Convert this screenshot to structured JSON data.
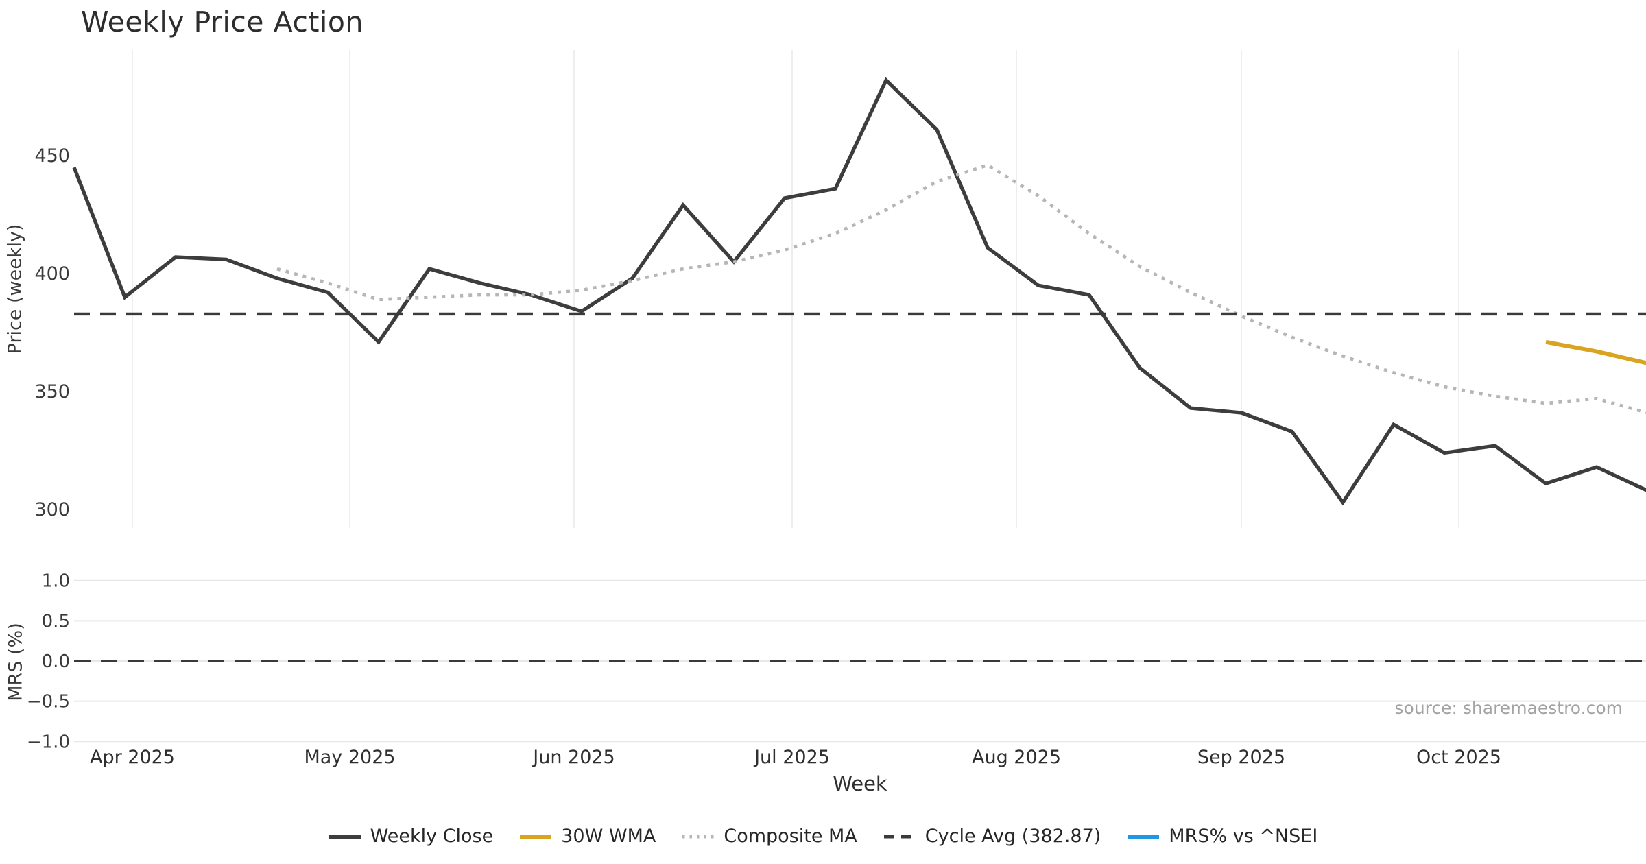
{
  "title": "Weekly Price Action",
  "source": "source: sharemaestro.com",
  "axes": {
    "price_axis_label": "Price (weekly)",
    "mrs_axis_label": "MRS (%)",
    "x_axis_label": "Week",
    "price_ticks": [
      "450",
      "400",
      "350",
      "300"
    ],
    "mrs_ticks": [
      "1.0",
      "0.5",
      "0.0",
      "−0.5",
      "−1.0"
    ],
    "month_ticks": [
      "Apr 2025",
      "May 2025",
      "Jun 2025",
      "Jul 2025",
      "Aug 2025",
      "Sep 2025",
      "Oct 2025"
    ]
  },
  "colors": {
    "weekly_close": "#3d3d3d",
    "wma_30w": "#d9a521",
    "composite_ma": "#b6b6b6",
    "cycle_avg": "#3a3a3a",
    "mrs_blue": "#2196e3",
    "grid_vertical": "#eceff1",
    "grid_horizontal": "#e8e8e8",
    "background": "#ffffff"
  },
  "legend": [
    {
      "label": "Weekly Close",
      "color": "#3d3d3d",
      "style": "solid"
    },
    {
      "label": "30W WMA",
      "color": "#d9a521",
      "style": "solid"
    },
    {
      "label": "Composite MA",
      "color": "#b6b6b6",
      "style": "dotted"
    },
    {
      "label": "Cycle Avg (382.87)",
      "color": "#3a3a3a",
      "style": "dashed"
    },
    {
      "label": "MRS% vs ^NSEI",
      "color": "#2196e3",
      "style": "solid"
    }
  ],
  "chart_data": [
    {
      "panel": "price",
      "type": "line",
      "title": "Weekly Price Action",
      "ylabel": "Price (weekly)",
      "xlabel": "Week",
      "x_interval": "weekly",
      "x_start": "2025-03-24",
      "yticks": [
        450,
        400,
        350,
        300
      ],
      "ylim": [
        288,
        494
      ],
      "grid": "vertical-months-only",
      "xticklabels": [
        "Apr 2025",
        "May 2025",
        "Jun 2025",
        "Jul 2025",
        "Aug 2025",
        "Sep 2025",
        "Oct 2025"
      ],
      "series": [
        {
          "name": "Weekly Close",
          "style": "solid",
          "color": "#3d3d3d",
          "start_date": "2025-03-24",
          "values": [
            445,
            390,
            407,
            406,
            398,
            392,
            371,
            402,
            396,
            391,
            384,
            398,
            429,
            405,
            432,
            436,
            482,
            461,
            411,
            395,
            391,
            360,
            343,
            341,
            333,
            303,
            336,
            324,
            327,
            311,
            318,
            308
          ]
        },
        {
          "name": "Composite MA",
          "style": "dotted",
          "color": "#b6b6b6",
          "start_date": "2025-04-21",
          "values": [
            402,
            396,
            389,
            390,
            391,
            391,
            393,
            397,
            402,
            405,
            410,
            417,
            427,
            439,
            446,
            433,
            417,
            403,
            392,
            382,
            373,
            365,
            358,
            352,
            348,
            345,
            347,
            341
          ]
        },
        {
          "name": "30W WMA",
          "style": "solid",
          "color": "#d9a521",
          "start_date": "2025-10-13",
          "values": [
            371,
            367,
            362
          ]
        },
        {
          "name": "Cycle Avg",
          "style": "dashed",
          "color": "#3a3a3a",
          "constant_value": 382.87
        }
      ]
    },
    {
      "panel": "mrs",
      "type": "line",
      "ylabel": "MRS (%)",
      "yticks": [
        1.0,
        0.5,
        0.0,
        -0.5,
        -1.0
      ],
      "ylim": [
        -1.0,
        1.0
      ],
      "grid": "horizontal-only",
      "reference_line": 0.0,
      "series": []
    }
  ]
}
